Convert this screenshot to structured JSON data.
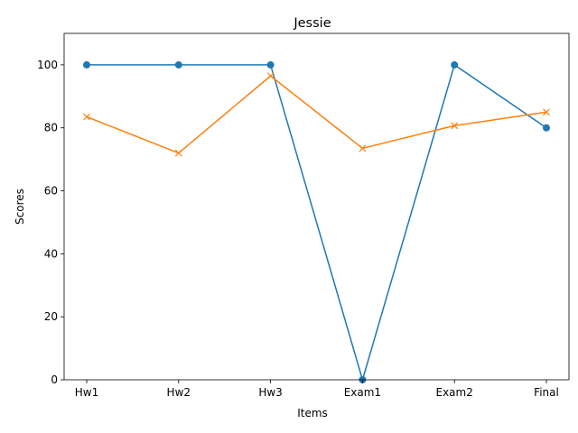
{
  "chart_data": {
    "type": "line",
    "title": "Jessie",
    "xlabel": "Items",
    "ylabel": "Scores",
    "categories": [
      "Hw1",
      "Hw2",
      "Hw3",
      "Exam1",
      "Exam2",
      "Final"
    ],
    "ylim": [
      0,
      110
    ],
    "yticks": [
      0,
      20,
      40,
      60,
      80,
      100
    ],
    "grid": false,
    "legend": "none",
    "series": [
      {
        "values": [
          100,
          100,
          100,
          0,
          100,
          80
        ],
        "color": "#1f77b4",
        "marker": "circle"
      },
      {
        "values": [
          83.5,
          72,
          96.5,
          73.5,
          80.7,
          85
        ],
        "color": "#ff7f0e",
        "marker": "x"
      }
    ]
  }
}
